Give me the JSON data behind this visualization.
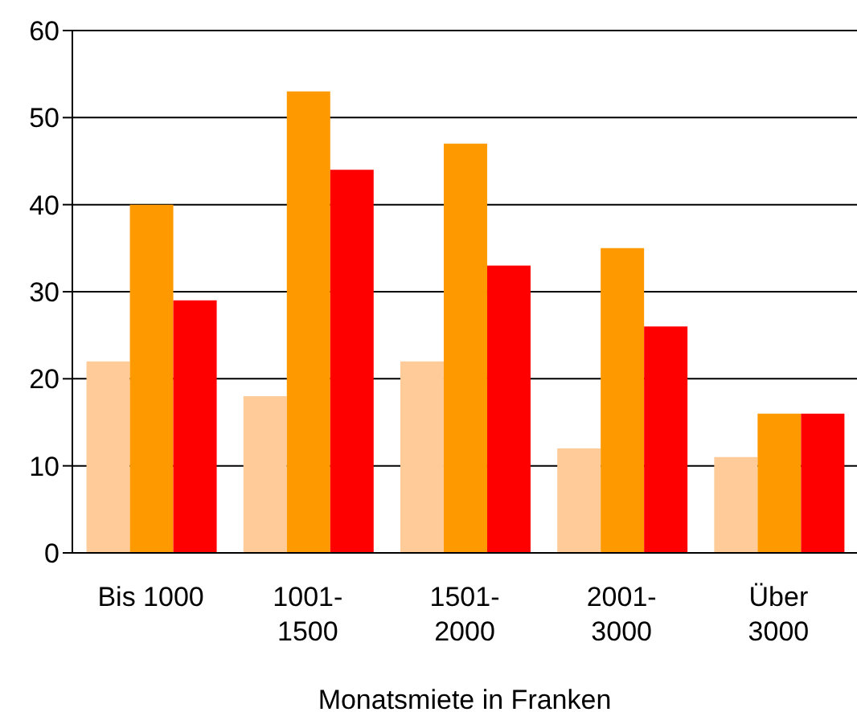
{
  "chart_data": {
    "type": "bar",
    "xlabel": "Monatsmiete in Franken",
    "categories": [
      "Bis 1000",
      "1001-\n1500",
      "1501-\n2000",
      "2001-\n3000",
      "Über\n3000"
    ],
    "series": [
      {
        "color": "#ffcc99",
        "values": [
          22,
          18,
          22,
          12,
          11
        ]
      },
      {
        "color": "#ff9900",
        "values": [
          40,
          53,
          47,
          35,
          16
        ]
      },
      {
        "color": "#ff0000",
        "values": [
          29,
          44,
          33,
          26,
          16
        ]
      }
    ],
    "ylim": [
      0,
      60
    ],
    "yticks": [
      0,
      10,
      20,
      30,
      40,
      50,
      60
    ],
    "grid": "y",
    "legend": false
  }
}
